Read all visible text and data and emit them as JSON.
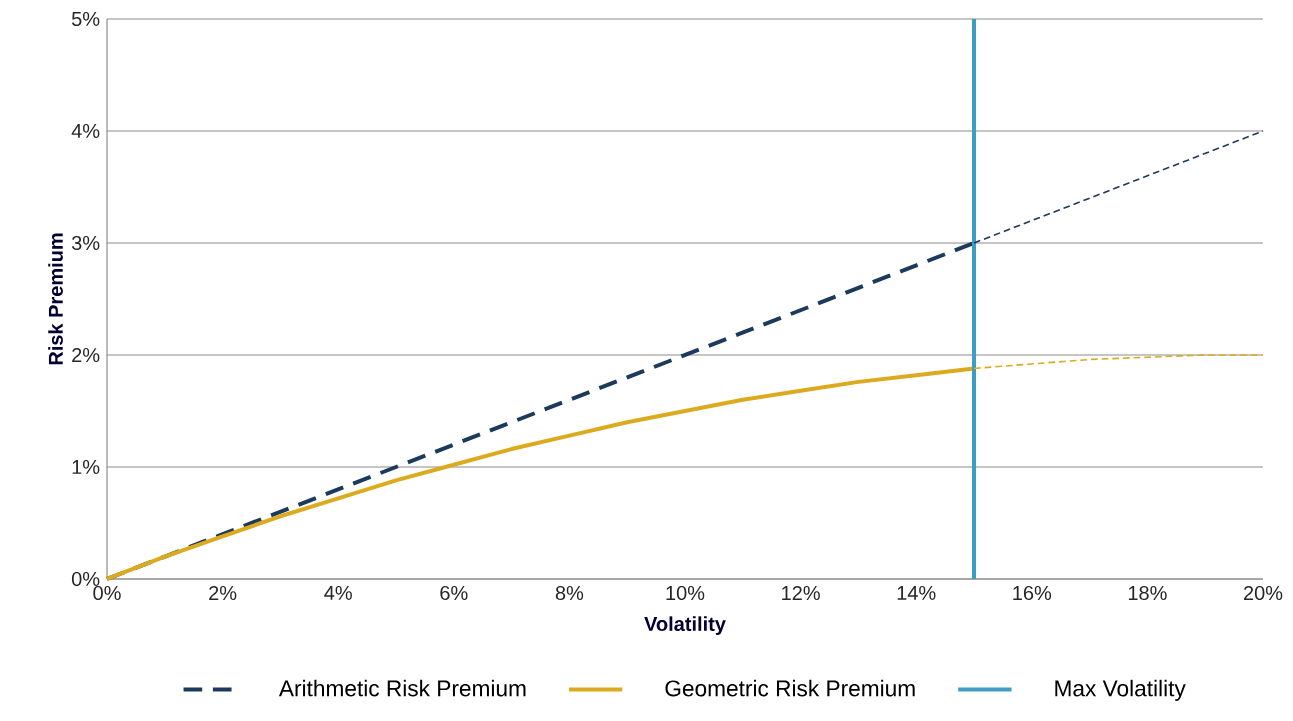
{
  "chart_data": {
    "type": "line",
    "xlabel": "Volatility",
    "ylabel": "Risk Premium",
    "xlim": [
      0,
      20
    ],
    "ylim": [
      0,
      5
    ],
    "xticks": [
      {
        "value": 0,
        "label": "0%"
      },
      {
        "value": 2,
        "label": "2%"
      },
      {
        "value": 4,
        "label": "4%"
      },
      {
        "value": 6,
        "label": "6%"
      },
      {
        "value": 8,
        "label": "8%"
      },
      {
        "value": 10,
        "label": "10%"
      },
      {
        "value": 12,
        "label": "12%"
      },
      {
        "value": 14,
        "label": "14%"
      },
      {
        "value": 16,
        "label": "16%"
      },
      {
        "value": 18,
        "label": "18%"
      },
      {
        "value": 20,
        "label": "20%"
      }
    ],
    "yticks": [
      {
        "value": 0,
        "label": "0%"
      },
      {
        "value": 1,
        "label": "1%"
      },
      {
        "value": 2,
        "label": "2%"
      },
      {
        "value": 3,
        "label": "3%"
      },
      {
        "value": 4,
        "label": "4%"
      },
      {
        "value": 5,
        "label": "5%"
      }
    ],
    "grid": "y",
    "legend": "bottom",
    "marker": "none",
    "series": [
      {
        "name": "Arithmetic Risk Premium",
        "color": "#1b3a5c",
        "line_style": "dashed",
        "x": [
          0,
          15
        ],
        "values": [
          0,
          3
        ]
      },
      {
        "name": "Geometric Risk Premium",
        "color": "#dcaa1e",
        "line_style": "solid",
        "x": [
          0,
          1,
          2,
          3,
          4,
          5,
          6,
          7,
          8,
          9,
          10,
          11,
          12,
          13,
          14,
          15
        ],
        "values": [
          0,
          0.2,
          0.38,
          0.56,
          0.72,
          0.88,
          1.02,
          1.16,
          1.28,
          1.4,
          1.5,
          1.6,
          1.68,
          1.76,
          1.82,
          1.88
        ]
      },
      {
        "name": "Max Volatility",
        "color": "#3d9dc3",
        "line_style": "solid",
        "x": [
          15,
          15
        ],
        "values": [
          0,
          5
        ]
      },
      {
        "color": "#1b3a5c",
        "line_style": "dashed",
        "x": [
          15,
          20
        ],
        "values": [
          3,
          4
        ]
      },
      {
        "color": "#dcaa1e",
        "line_style": "dashed",
        "x": [
          15,
          16,
          17,
          18,
          19,
          20
        ],
        "values": [
          1.88,
          1.92,
          1.96,
          1.98,
          2.0,
          2.0
        ]
      }
    ]
  }
}
